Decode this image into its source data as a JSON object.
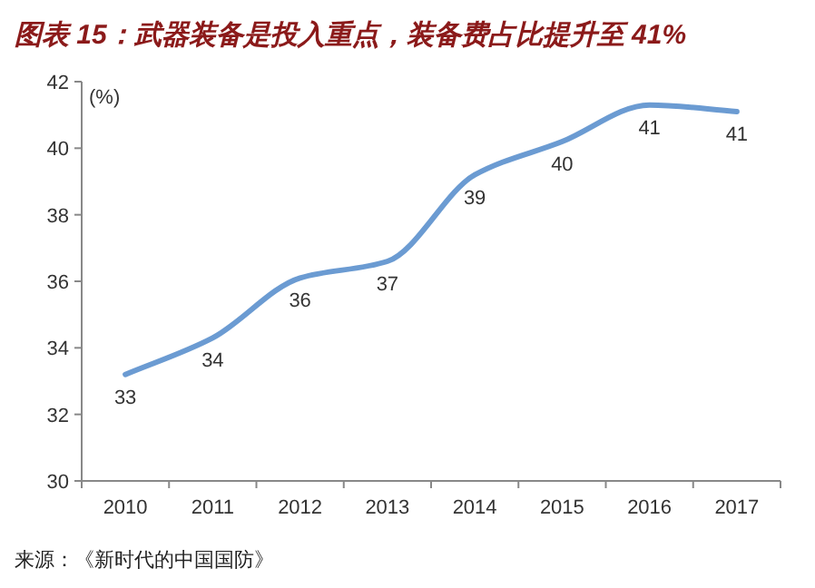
{
  "chart_data": {
    "type": "line",
    "title": "图表 15：武器装备是投入重点，装备费占比提升至 41%",
    "ylabel": "(%)",
    "categories": [
      "2010",
      "2011",
      "2012",
      "2013",
      "2014",
      "2015",
      "2016",
      "2017"
    ],
    "series": [
      {
        "color": "#6b9bd2",
        "values": [
          33.2,
          34.3,
          36.1,
          36.6,
          39.2,
          40.2,
          41.3,
          41.1
        ],
        "value_labels": [
          "33",
          "34",
          "36",
          "37",
          "39",
          "40",
          "41",
          "41"
        ]
      }
    ],
    "ylim": [
      30,
      42
    ],
    "yticks": [
      30,
      32,
      34,
      36,
      38,
      40,
      42
    ],
    "annotations": [
      "来源：《新时代的中国国防》"
    ]
  }
}
